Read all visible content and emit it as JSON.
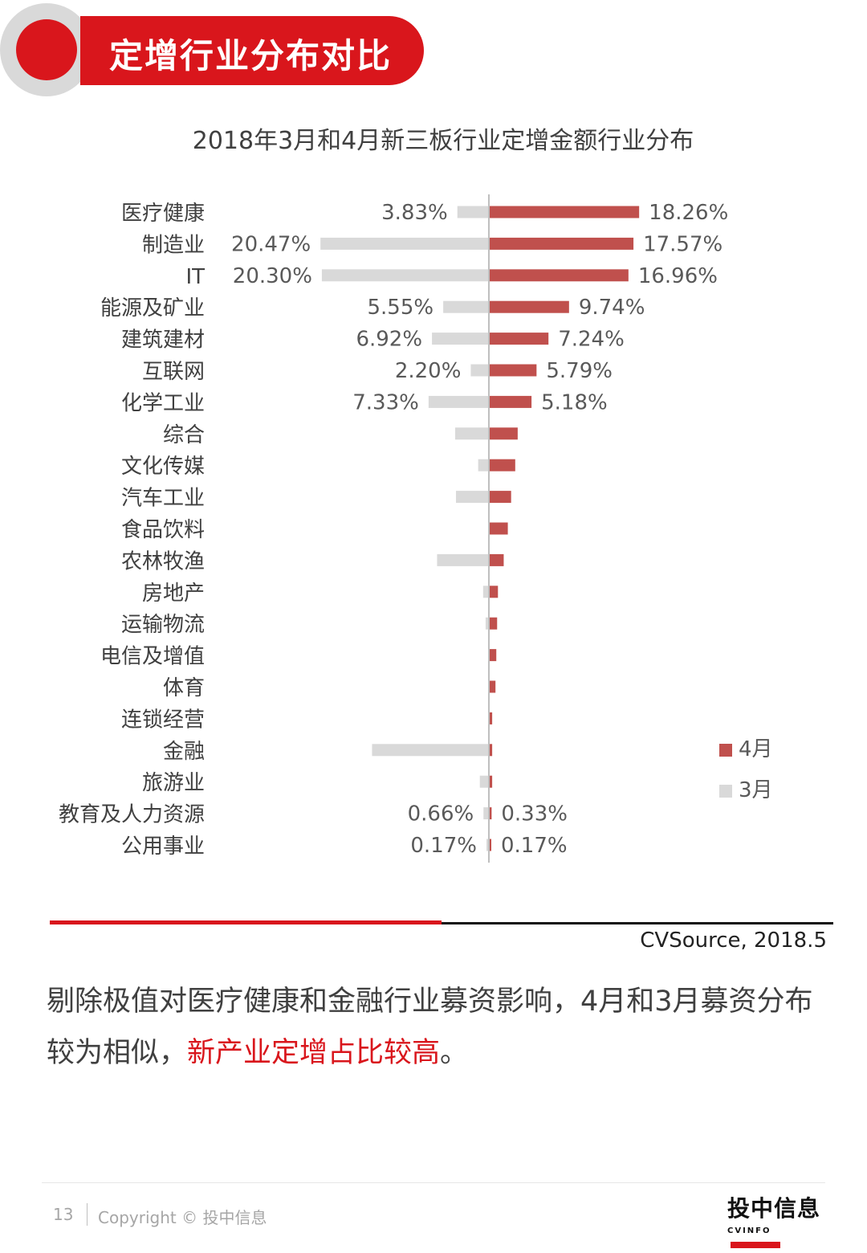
{
  "header": {
    "title": "定增行业分布对比"
  },
  "chart_title": "2018年3月和4月新三板行业定增金额行业分布",
  "chart_data": {
    "type": "bar",
    "orientation": "horizontal-butterfly",
    "title": "2018年3月和4月新三板行业定增金额行业分布",
    "unit": "%",
    "categories": [
      "医疗健康",
      "制造业",
      "IT",
      "能源及矿业",
      "建筑建材",
      "互联网",
      "化学工业",
      "综合",
      "文化传媒",
      "汽车工业",
      "食品饮料",
      "农林牧渔",
      "房地产",
      "运输物流",
      "电信及增值",
      "体育",
      "连锁经营",
      "金融",
      "旅游业",
      "教育及人力资源",
      "公用事业"
    ],
    "series": [
      {
        "name": "4月",
        "color": "#c0504d",
        "side": "right",
        "values": [
          18.26,
          17.57,
          16.96,
          9.74,
          7.24,
          5.79,
          5.18,
          3.5,
          3.2,
          2.7,
          2.3,
          1.8,
          1.1,
          1.0,
          0.9,
          0.8,
          0.4,
          0.4,
          0.4,
          0.33,
          0.17
        ],
        "labels": [
          "18.26%",
          "17.57%",
          "16.96%",
          "9.74%",
          "7.24%",
          "5.79%",
          "5.18%",
          "",
          "",
          "",
          "",
          "",
          "",
          "",
          "",
          "",
          "",
          "",
          "",
          "0.33%",
          "0.17%"
        ]
      },
      {
        "name": "3月",
        "color": "#d9d9d9",
        "side": "left",
        "values": [
          3.83,
          20.47,
          20.3,
          5.55,
          6.92,
          2.2,
          7.33,
          4.1,
          1.3,
          4.0,
          0,
          6.3,
          0.7,
          0.4,
          0,
          0,
          0,
          14.2,
          1.1,
          0.66,
          0.17
        ],
        "labels": [
          "3.83%",
          "20.47%",
          "20.30%",
          "5.55%",
          "6.92%",
          "2.20%",
          "7.33%",
          "",
          "",
          "",
          "",
          "",
          "",
          "",
          "",
          "",
          "",
          "",
          "",
          "0.66%",
          "0.17%"
        ]
      }
    ],
    "legend": [
      "4月",
      "3月"
    ],
    "legend_position": "right"
  },
  "legend": {
    "apr": "4月",
    "mar": "3月"
  },
  "source": "CVSource, 2018.5",
  "body": {
    "text_before": "剔除极值对医疗健康和金融行业募资影响，4月和3月募资分布较为相似，",
    "highlight": "新产业定增占比较高",
    "text_after": "。"
  },
  "footer": {
    "page_number": "13",
    "copyright": "Copyright © 投中信息",
    "logo_cn": "投中信息",
    "logo_en": "CVINFO"
  },
  "colors": {
    "accent": "#d9161c",
    "april_bar": "#c0504d",
    "march_bar": "#d9d9d9"
  }
}
